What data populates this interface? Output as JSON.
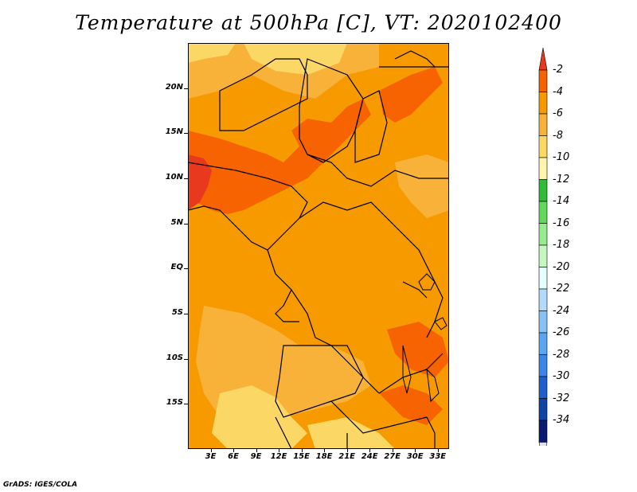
{
  "title": "Temperature at 500hPa [C], VT: 2020102400",
  "credit": "GrADS: IGES/COLA",
  "map": {
    "lat_labels": [
      "20N",
      "15N",
      "10N",
      "5N",
      "EQ",
      "5S",
      "10S",
      "15S"
    ],
    "lon_labels": [
      "3E",
      "6E",
      "9E",
      "12E",
      "15E",
      "18E",
      "21E",
      "24E",
      "27E",
      "30E",
      "33E"
    ],
    "lon_range": [
      0,
      34.5
    ],
    "lat_range": [
      -20,
      25
    ]
  },
  "colorbar": {
    "labels": [
      "-2",
      "-4",
      "-6",
      "-8",
      "-10",
      "-12",
      "-14",
      "-16",
      "-18",
      "-20",
      "-22",
      "-24",
      "-26",
      "-28",
      "-30",
      "-32",
      "-34"
    ],
    "colors": [
      "#e8381e",
      "#f76300",
      "#f79a00",
      "#f8b23a",
      "#fbd766",
      "#fff6ad",
      "#30bc37",
      "#62d85b",
      "#95ec8d",
      "#c5f7c0",
      "#e4ffff",
      "#b3dbf9",
      "#85c2f5",
      "#58a6ef",
      "#3b86e6",
      "#1e5fcf",
      "#0e44a6",
      "#0a1a72",
      "#e0e0f7"
    ]
  }
}
